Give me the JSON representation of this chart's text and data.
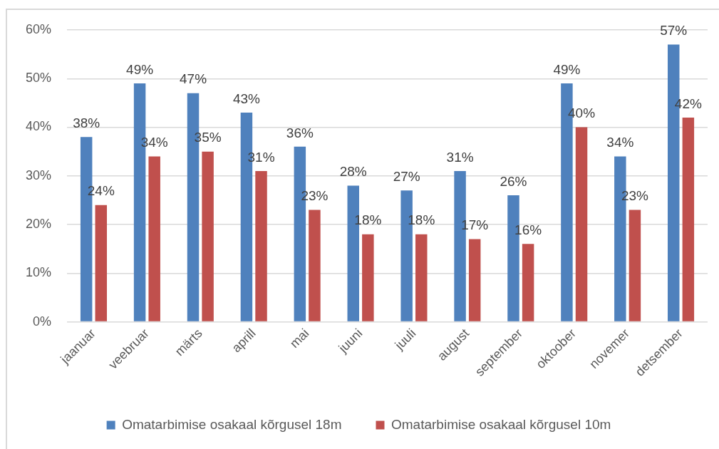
{
  "chart_data": {
    "type": "bar",
    "categories": [
      "jaanuar",
      "veebruar",
      "märts",
      "aprill",
      "mai",
      "juuni",
      "juuli",
      "august",
      "september",
      "oktoober",
      "novemer",
      "detsember"
    ],
    "series": [
      {
        "name": "Omatarbimise osakaal kõrgusel 18m",
        "color": "#4f81bd",
        "values": [
          38,
          49,
          47,
          43,
          36,
          28,
          27,
          31,
          26,
          49,
          34,
          57
        ],
        "value_labels": [
          "38%",
          "49%",
          "47%",
          "43%",
          "36%",
          "28%",
          "27%",
          "31%",
          "26%",
          "49%",
          "34%",
          "57%"
        ]
      },
      {
        "name": "Omatarbimise osakaal kõrgusel 10m",
        "color": "#c0504d",
        "values": [
          24,
          34,
          35,
          31,
          23,
          18,
          18,
          17,
          16,
          40,
          23,
          42
        ],
        "value_labels": [
          "24%",
          "34%",
          "35%",
          "31%",
          "23%",
          "18%",
          "18%",
          "17%",
          "16%",
          "40%",
          "23%",
          "42%"
        ]
      }
    ],
    "ylim": [
      0,
      60
    ],
    "yticks": [
      {
        "value": 0,
        "label": "0%"
      },
      {
        "value": 10,
        "label": "10%"
      },
      {
        "value": 20,
        "label": "20%"
      },
      {
        "value": 30,
        "label": "30%"
      },
      {
        "value": 40,
        "label": "40%"
      },
      {
        "value": 50,
        "label": "50%"
      },
      {
        "value": 60,
        "label": "60%"
      }
    ],
    "grid": "y",
    "legend": "bottom"
  }
}
